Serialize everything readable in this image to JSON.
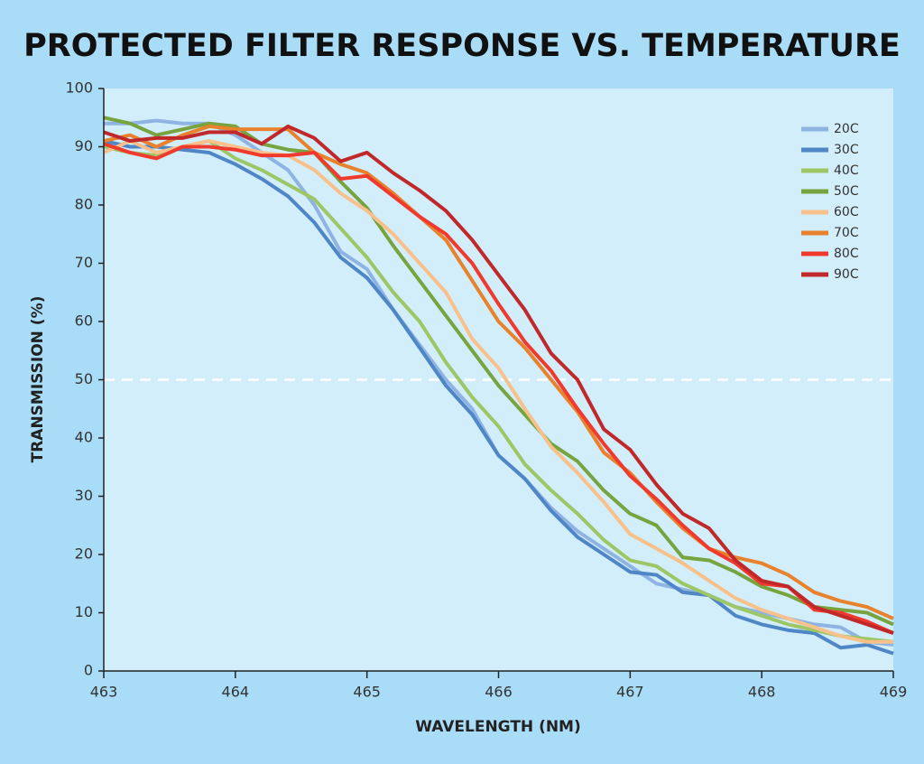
{
  "chart_data": {
    "type": "line",
    "title": "PROTECTED FILTER RESPONSE VS. TEMPERATURE",
    "x_label": "WAVELENGTH (NM)",
    "y_label": "TRANSMISSION (%)",
    "xlim": [
      463,
      469
    ],
    "xticks": [
      463,
      464,
      465,
      466,
      467,
      468,
      469
    ],
    "ylim": [
      0,
      100
    ],
    "yticks": [
      0,
      10,
      20,
      30,
      40,
      50,
      60,
      70,
      80,
      90,
      100
    ],
    "reference_line": 50,
    "legend": "top-right",
    "x": [
      463,
      463.2,
      463.4,
      463.6,
      463.8,
      464,
      464.2,
      464.4,
      464.6,
      464.8,
      465,
      465.2,
      465.4,
      465.6,
      465.8,
      466,
      466.2,
      466.4,
      466.6,
      466.8,
      467,
      467.2,
      467.4,
      467.6,
      467.8,
      468,
      468.2,
      468.4,
      468.6,
      468.8,
      469
    ],
    "series": [
      {
        "name": "20C",
        "color": "#8fb4e3",
        "values": [
          94,
          94,
          94.5,
          94,
          94,
          92,
          89,
          86,
          80,
          72,
          69,
          62,
          56,
          50,
          45,
          37,
          33,
          28,
          24,
          21,
          18,
          15,
          14,
          13,
          11,
          10,
          9,
          8,
          7.5,
          5,
          4.5
        ]
      },
      {
        "name": "30C",
        "color": "#4f86c6",
        "values": [
          91,
          90,
          90,
          89.5,
          89,
          87,
          84.5,
          81.5,
          77,
          71,
          67.5,
          62,
          55.5,
          49,
          44,
          37,
          33,
          27.5,
          23,
          20,
          17,
          16.5,
          13.5,
          13,
          9.5,
          8,
          7,
          6.5,
          4,
          4.5,
          3
        ]
      },
      {
        "name": "40C",
        "color": "#9dc766",
        "values": [
          90,
          89,
          88.5,
          90,
          91,
          88,
          86,
          83.5,
          81,
          76,
          71,
          65,
          60,
          53,
          47,
          42,
          35.5,
          31,
          27,
          22.5,
          19,
          18,
          15,
          13,
          11,
          9.5,
          8,
          7,
          6,
          5.5,
          5
        ]
      },
      {
        "name": "50C",
        "color": "#77a43f",
        "values": [
          95,
          94,
          92,
          93,
          94,
          93.5,
          90.5,
          89.5,
          89,
          84,
          79.5,
          73,
          67,
          61,
          55,
          49,
          44,
          39,
          36,
          31,
          27,
          25,
          19.5,
          19,
          17,
          14.5,
          13,
          11,
          10.5,
          10,
          8
        ]
      },
      {
        "name": "60C",
        "color": "#f8c08a",
        "values": [
          89,
          91,
          89,
          90,
          91,
          90,
          89,
          88.5,
          86,
          82,
          79,
          75,
          70,
          65,
          57,
          52,
          45,
          38.5,
          34,
          29,
          23.5,
          21,
          18.5,
          15.5,
          12.5,
          10.5,
          9,
          7.5,
          6,
          5,
          5
        ]
      },
      {
        "name": "70C",
        "color": "#e8822c",
        "values": [
          91,
          92,
          90,
          92,
          93.5,
          93,
          93,
          93,
          89,
          87,
          85.5,
          82,
          78,
          74,
          67,
          60,
          55.5,
          50,
          44.5,
          37.5,
          34,
          29,
          24.5,
          21,
          19.5,
          18.5,
          16.5,
          13.5,
          12,
          11,
          9
        ]
      },
      {
        "name": "80C",
        "color": "#f03a2e",
        "values": [
          90.5,
          89,
          88,
          90,
          90,
          89.5,
          88.5,
          88.5,
          89,
          84.5,
          85,
          81.5,
          78,
          75,
          70,
          63,
          56.5,
          51.5,
          45,
          39,
          33.5,
          29.5,
          25,
          21,
          18.5,
          15,
          14.5,
          10.5,
          10,
          8.5,
          6.5
        ]
      },
      {
        "name": "90C",
        "color": "#c0282a",
        "values": [
          92.5,
          91,
          91.5,
          91.5,
          92.5,
          92.5,
          90.5,
          93.5,
          91.5,
          87.5,
          89,
          85.5,
          82.5,
          79,
          74,
          68,
          62,
          54.5,
          50,
          41.5,
          38,
          32,
          27,
          24.5,
          19,
          15.5,
          14.5,
          11,
          9.5,
          8,
          6.5
        ]
      }
    ]
  }
}
